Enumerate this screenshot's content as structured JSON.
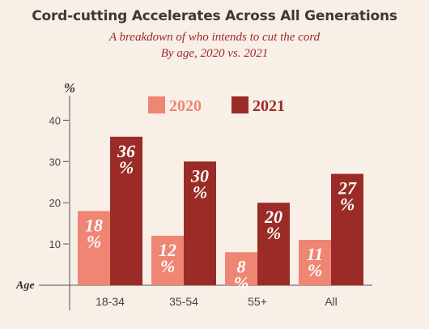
{
  "chart_data": {
    "type": "bar",
    "title": "Cord-cutting Accelerates Across All Generations",
    "subtitle": "A breakdown of who intends to cut the cord",
    "subtitle2": "By age, 2020 vs. 2021",
    "xlabel": "Age",
    "ylabel": "%",
    "ylim": [
      0,
      45
    ],
    "yticks": [
      10,
      20,
      30,
      40
    ],
    "categories": [
      "18-34",
      "35-54",
      "55+",
      "All"
    ],
    "series": [
      {
        "name": "2020",
        "values": [
          18,
          12,
          8,
          11
        ],
        "labels": [
          "18%",
          "12%",
          "8%",
          "11%"
        ],
        "color": "#ee8673"
      },
      {
        "name": "2021",
        "values": [
          36,
          30,
          20,
          27
        ],
        "labels": [
          "36%",
          "30%",
          "20%",
          "27%"
        ],
        "color": "#9b2b26"
      }
    ],
    "legend_position": "top",
    "grid": false
  }
}
